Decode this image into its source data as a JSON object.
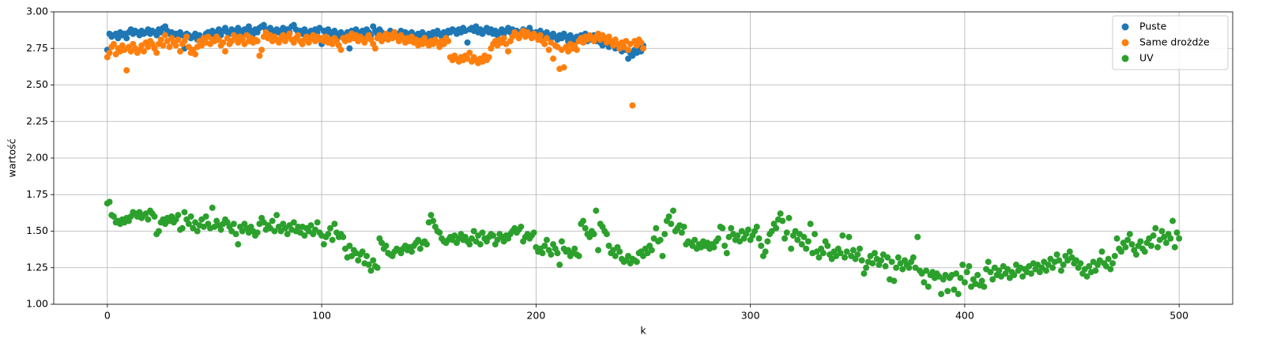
{
  "chart_data": {
    "type": "scatter",
    "x_label": "k",
    "y_label": "wartość",
    "xlim": [
      -25,
      525
    ],
    "xticks": [
      0,
      100,
      200,
      300,
      400,
      500
    ],
    "ylim": [
      1,
      3
    ],
    "yticks": [
      {
        "value": 1,
        "label": "1.00"
      },
      {
        "value": 1.25,
        "label": "1.25"
      },
      {
        "value": 1.5,
        "label": "1.50"
      },
      {
        "value": 1.75,
        "label": "1.75"
      },
      {
        "value": 2,
        "label": "2.00"
      },
      {
        "value": 2.25,
        "label": "2.25"
      },
      {
        "value": 2.5,
        "label": "2.50"
      },
      {
        "value": 2.75,
        "label": "2.75"
      },
      {
        "value": 3,
        "label": "3.00"
      }
    ],
    "grid": true,
    "legend": "upper-right",
    "series": [
      {
        "name": "Puste",
        "color": "#1f77b4",
        "values": [
          2.74,
          2.85,
          2.83,
          2.84,
          2.85,
          2.82,
          2.86,
          2.84,
          2.85,
          2.82,
          2.86,
          2.88,
          2.85,
          2.87,
          2.86,
          2.84,
          2.87,
          2.85,
          2.86,
          2.88,
          2.85,
          2.87,
          2.86,
          2.84,
          2.88,
          2.86,
          2.89,
          2.9,
          2.87,
          2.85,
          2.86,
          2.84,
          2.85,
          2.83,
          2.86,
          2.84,
          2.75,
          2.85,
          2.84,
          2.82,
          2.83,
          2.85,
          2.81,
          2.84,
          2.8,
          2.82,
          2.85,
          2.86,
          2.84,
          2.87,
          2.85,
          2.86,
          2.88,
          2.84,
          2.87,
          2.89,
          2.86,
          2.85,
          2.88,
          2.87,
          2.86,
          2.89,
          2.87,
          2.85,
          2.88,
          2.86,
          2.9,
          2.87,
          2.85,
          2.88,
          2.86,
          2.89,
          2.9,
          2.91,
          2.88,
          2.86,
          2.89,
          2.87,
          2.85,
          2.88,
          2.86,
          2.87,
          2.89,
          2.85,
          2.88,
          2.86,
          2.9,
          2.91,
          2.88,
          2.86,
          2.87,
          2.85,
          2.88,
          2.86,
          2.84,
          2.87,
          2.85,
          2.88,
          2.86,
          2.89,
          2.78,
          2.87,
          2.85,
          2.88,
          2.86,
          2.84,
          2.87,
          2.85,
          2.83,
          2.86,
          2.84,
          2.82,
          2.86,
          2.75,
          2.87,
          2.85,
          2.88,
          2.86,
          2.84,
          2.87,
          2.85,
          2.88,
          2.86,
          2.84,
          2.9,
          2.87,
          2.85,
          2.88,
          2.86,
          2.84,
          2.82,
          2.85,
          2.87,
          2.84,
          2.86,
          2.83,
          2.85,
          2.87,
          2.84,
          2.86,
          2.85,
          2.83,
          2.86,
          2.84,
          2.82,
          2.85,
          2.83,
          2.86,
          2.84,
          2.82,
          2.85,
          2.83,
          2.86,
          2.84,
          2.87,
          2.85,
          2.83,
          2.86,
          2.84,
          2.87,
          2.86,
          2.88,
          2.87,
          2.85,
          2.88,
          2.86,
          2.89,
          2.87,
          2.79,
          2.88,
          2.89,
          2.87,
          2.9,
          2.86,
          2.88,
          2.85,
          2.87,
          2.89,
          2.86,
          2.88,
          2.85,
          2.87,
          2.84,
          2.86,
          2.88,
          2.85,
          2.87,
          2.89,
          2.86,
          2.88,
          2.85,
          2.87,
          2.84,
          2.86,
          2.88,
          2.85,
          2.87,
          2.89,
          2.86,
          2.84,
          2.86,
          2.84,
          2.87,
          2.85,
          2.83,
          2.86,
          2.84,
          2.82,
          2.85,
          2.83,
          2.81,
          2.84,
          2.82,
          2.85,
          2.83,
          2.8,
          2.84,
          2.82,
          2.79,
          2.83,
          2.81,
          2.84,
          2.82,
          2.85,
          2.8,
          2.83,
          2.81,
          2.84,
          2.8,
          2.82,
          2.79,
          2.77,
          2.8,
          2.78,
          2.76,
          2.79,
          2.77,
          2.75,
          2.78,
          2.76,
          2.73,
          2.76,
          2.74,
          2.68,
          2.72,
          2.7,
          2.74,
          2.72,
          2.75,
          2.73,
          2.77
        ]
      },
      {
        "name": "Same drożdże",
        "color": "#ff7f0e",
        "values": [
          2.69,
          2.72,
          2.76,
          2.78,
          2.71,
          2.75,
          2.73,
          2.77,
          2.74,
          2.6,
          2.76,
          2.73,
          2.78,
          2.75,
          2.72,
          2.74,
          2.77,
          2.73,
          2.79,
          2.76,
          2.8,
          2.78,
          2.75,
          2.72,
          2.78,
          2.81,
          2.77,
          2.84,
          2.8,
          2.76,
          2.82,
          2.79,
          2.77,
          2.81,
          2.73,
          2.78,
          2.8,
          2.83,
          2.76,
          2.72,
          2.74,
          2.71,
          2.76,
          2.8,
          2.77,
          2.82,
          2.79,
          2.83,
          2.78,
          2.81,
          2.8,
          2.83,
          2.81,
          2.77,
          2.79,
          2.73,
          2.82,
          2.78,
          2.8,
          2.84,
          2.82,
          2.79,
          2.83,
          2.81,
          2.78,
          2.84,
          2.8,
          2.82,
          2.79,
          2.81,
          2.8,
          2.7,
          2.74,
          2.83,
          2.86,
          2.82,
          2.84,
          2.8,
          2.83,
          2.81,
          2.79,
          2.82,
          2.84,
          2.8,
          2.83,
          2.85,
          2.81,
          2.79,
          2.82,
          2.84,
          2.8,
          2.78,
          2.81,
          2.83,
          2.79,
          2.82,
          2.84,
          2.8,
          2.83,
          2.81,
          2.82,
          2.8,
          2.83,
          2.79,
          2.81,
          2.78,
          2.82,
          2.8,
          2.77,
          2.74,
          2.82,
          2.8,
          2.83,
          2.81,
          2.85,
          2.82,
          2.84,
          2.8,
          2.83,
          2.81,
          2.79,
          2.82,
          2.84,
          2.81,
          2.78,
          2.75,
          2.82,
          2.84,
          2.8,
          2.83,
          2.85,
          2.81,
          2.84,
          2.82,
          2.86,
          2.83,
          2.8,
          2.84,
          2.82,
          2.79,
          2.82,
          2.8,
          2.83,
          2.79,
          2.81,
          2.77,
          2.8,
          2.78,
          2.82,
          2.79,
          2.77,
          2.8,
          2.78,
          2.81,
          2.79,
          2.76,
          2.8,
          2.78,
          2.82,
          2.8,
          2.69,
          2.67,
          2.7,
          2.68,
          2.66,
          2.69,
          2.67,
          2.7,
          2.68,
          2.72,
          2.66,
          2.69,
          2.67,
          2.65,
          2.68,
          2.66,
          2.7,
          2.67,
          2.69,
          2.75,
          2.78,
          2.8,
          2.77,
          2.81,
          2.79,
          2.82,
          2.78,
          2.73,
          2.8,
          2.83,
          2.86,
          2.84,
          2.82,
          2.85,
          2.87,
          2.83,
          2.86,
          2.84,
          2.82,
          2.85,
          2.83,
          2.81,
          2.84,
          2.8,
          2.78,
          2.82,
          2.74,
          2.79,
          2.68,
          2.77,
          2.76,
          2.61,
          2.74,
          2.62,
          2.76,
          2.73,
          2.78,
          2.75,
          2.77,
          2.74,
          2.8,
          2.82,
          2.79,
          2.83,
          2.81,
          2.84,
          2.82,
          2.8,
          2.83,
          2.85,
          2.81,
          2.84,
          2.82,
          2.79,
          2.83,
          2.8,
          2.77,
          2.81,
          2.78,
          2.75,
          2.79,
          2.76,
          2.8,
          2.74,
          2.78,
          2.36,
          2.8,
          2.77,
          2.81,
          2.79,
          2.75
        ]
      },
      {
        "name": "UV",
        "color": "#2ca02c",
        "values": [
          1.69,
          1.7,
          1.61,
          1.6,
          1.56,
          1.57,
          1.55,
          1.58,
          1.56,
          1.59,
          1.57,
          1.6,
          1.63,
          1.62,
          1.6,
          1.63,
          1.59,
          1.61,
          1.62,
          1.58,
          1.64,
          1.62,
          1.6,
          1.48,
          1.5,
          1.56,
          1.58,
          1.55,
          1.59,
          1.57,
          1.6,
          1.56,
          1.58,
          1.61,
          1.51,
          1.52,
          1.63,
          1.58,
          1.55,
          1.6,
          1.52,
          1.56,
          1.5,
          1.54,
          1.58,
          1.53,
          1.6,
          1.55,
          1.52,
          1.66,
          1.53,
          1.57,
          1.54,
          1.51,
          1.55,
          1.58,
          1.56,
          1.53,
          1.5,
          1.55,
          1.48,
          1.41,
          1.53,
          1.5,
          1.55,
          1.52,
          1.49,
          1.53,
          1.5,
          1.47,
          1.49,
          1.55,
          1.59,
          1.56,
          1.51,
          1.54,
          1.52,
          1.57,
          1.5,
          1.61,
          1.53,
          1.5,
          1.55,
          1.52,
          1.48,
          1.54,
          1.51,
          1.56,
          1.5,
          1.53,
          1.49,
          1.53,
          1.47,
          1.52,
          1.5,
          1.54,
          1.48,
          1.51,
          1.56,
          1.49,
          1.47,
          1.41,
          1.46,
          1.48,
          1.52,
          1.44,
          1.55,
          1.49,
          1.46,
          1.48,
          1.46,
          1.38,
          1.32,
          1.4,
          1.33,
          1.37,
          1.35,
          1.3,
          1.34,
          1.36,
          1.28,
          1.33,
          1.27,
          1.23,
          1.3,
          1.26,
          1.25,
          1.45,
          1.42,
          1.38,
          1.4,
          1.35,
          1.34,
          1.33,
          1.36,
          1.38,
          1.37,
          1.35,
          1.38,
          1.4,
          1.37,
          1.39,
          1.36,
          1.4,
          1.42,
          1.44,
          1.38,
          1.42,
          1.43,
          1.41,
          1.56,
          1.61,
          1.57,
          1.53,
          1.5,
          1.49,
          1.45,
          1.43,
          1.42,
          1.44,
          1.46,
          1.44,
          1.47,
          1.42,
          1.45,
          1.48,
          1.44,
          1.46,
          1.43,
          1.41,
          1.45,
          1.5,
          1.43,
          1.47,
          1.41,
          1.49,
          1.45,
          1.43,
          1.46,
          1.48,
          1.47,
          1.41,
          1.44,
          1.48,
          1.46,
          1.43,
          1.47,
          1.45,
          1.48,
          1.5,
          1.52,
          1.49,
          1.51,
          1.53,
          1.43,
          1.46,
          1.48,
          1.45,
          1.47,
          1.49,
          1.39,
          1.36,
          1.38,
          1.35,
          1.4,
          1.44,
          1.37,
          1.34,
          1.41,
          1.38,
          1.35,
          1.27,
          1.43,
          1.38,
          1.36,
          1.37,
          1.33,
          1.35,
          1.38,
          1.34,
          1.33,
          1.55,
          1.57,
          1.52,
          1.48,
          1.46,
          1.5,
          1.48,
          1.64,
          1.37,
          1.55,
          1.53,
          1.5,
          1.48,
          1.4,
          1.35,
          1.37,
          1.33,
          1.39,
          1.36,
          1.31,
          1.29,
          1.3,
          1.33,
          1.28,
          1.31,
          1.3,
          1.29,
          1.35,
          1.36,
          1.33,
          1.38,
          1.35,
          1.4,
          1.37,
          1.45,
          1.52,
          1.43,
          1.44,
          1.33,
          1.48,
          1.57,
          1.6,
          1.55,
          1.64,
          1.5,
          1.52,
          1.54,
          1.49,
          1.53,
          1.41,
          1.43,
          1.42,
          1.4,
          1.44,
          1.38,
          1.41,
          1.39,
          1.43,
          1.4,
          1.42,
          1.38,
          1.41,
          1.39,
          1.43,
          1.45,
          1.53,
          1.52,
          1.4,
          1.35,
          1.46,
          1.52,
          1.48,
          1.44,
          1.47,
          1.43,
          1.5,
          1.45,
          1.48,
          1.51,
          1.44,
          1.47,
          1.5,
          1.53,
          1.45,
          1.4,
          1.33,
          1.36,
          1.43,
          1.48,
          1.5,
          1.55,
          1.52,
          1.58,
          1.62,
          1.57,
          1.45,
          1.49,
          1.59,
          1.38,
          1.47,
          1.5,
          1.44,
          1.48,
          1.41,
          1.46,
          1.38,
          1.43,
          1.55,
          1.35,
          1.48,
          1.36,
          1.32,
          1.38,
          1.35,
          1.43,
          1.4,
          1.34,
          1.31,
          1.36,
          1.33,
          1.38,
          1.35,
          1.47,
          1.32,
          1.36,
          1.46,
          1.33,
          1.37,
          1.31,
          1.34,
          1.38,
          1.3,
          1.21,
          1.25,
          1.29,
          1.33,
          1.28,
          1.35,
          1.31,
          1.27,
          1.3,
          1.34,
          1.26,
          1.32,
          1.17,
          1.29,
          1.16,
          1.25,
          1.32,
          1.28,
          1.24,
          1.3,
          1.27,
          1.25,
          1.29,
          1.32,
          1.25,
          1.46,
          1.23,
          1.21,
          1.15,
          1.23,
          1.12,
          1.2,
          1.22,
          1.18,
          1.21,
          1.19,
          1.07,
          1.17,
          1.2,
          1.09,
          1.18,
          1.2,
          1.1,
          1.21,
          1.07,
          1.18,
          1.27,
          1.15,
          1.22,
          1.26,
          1.12,
          1.17,
          1.14,
          1.2,
          1.13,
          1.16,
          1.12,
          1.24,
          1.29,
          1.22,
          1.17,
          1.25,
          1.2,
          1.23,
          1.19,
          1.26,
          1.21,
          1.24,
          1.18,
          1.22,
          1.2,
          1.27,
          1.23,
          1.25,
          1.19,
          1.24,
          1.22,
          1.26,
          1.21,
          1.28,
          1.24,
          1.27,
          1.22,
          1.25,
          1.29,
          1.23,
          1.27,
          1.31,
          1.25,
          1.29,
          1.34,
          1.3,
          1.23,
          1.27,
          1.33,
          1.3,
          1.36,
          1.32,
          1.28,
          1.3,
          1.25,
          1.28,
          1.21,
          1.24,
          1.19,
          1.26,
          1.22,
          1.29,
          1.23,
          1.27,
          1.3,
          1.36,
          1.28,
          1.26,
          1.31,
          1.24,
          1.28,
          1.33,
          1.45,
          1.38,
          1.36,
          1.42,
          1.39,
          1.44,
          1.48,
          1.41,
          1.37,
          1.34,
          1.4,
          1.43,
          1.38,
          1.36,
          1.42,
          1.45,
          1.4,
          1.47,
          1.52,
          1.39,
          1.44,
          1.5,
          1.46,
          1.42,
          1.48,
          1.45,
          1.57,
          1.39,
          1.49,
          1.45
        ]
      }
    ]
  }
}
